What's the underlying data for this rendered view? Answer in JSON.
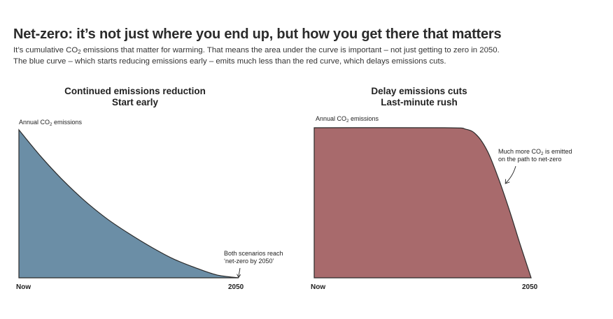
{
  "header": {
    "title": "Net-zero: it’s not just where you end up, but how you get there that matters",
    "subtitle_l1_a": "It’s cumulative CO",
    "subtitle_l1_sub": "2",
    "subtitle_l1_b": " emissions that matter for warming. That means the area under the curve is important – not just getting to zero in 2050.",
    "subtitle_l2": "The blue curve – which starts reducing emissions early – emits much less than the red curve, which delays emissions cuts."
  },
  "chart_data": [
    {
      "type": "area",
      "title": "Continued emissions reduction",
      "subtitle": "Start early",
      "ylabel_a": "Annual CO",
      "ylabel_sub": "2",
      "ylabel_b": " emissions",
      "x_ticks": [
        "Now",
        "2050"
      ],
      "x": [
        0,
        0.1,
        0.2,
        0.3,
        0.4,
        0.5,
        0.6,
        0.7,
        0.8,
        0.9,
        1.0
      ],
      "y": [
        1.0,
        0.82,
        0.66,
        0.52,
        0.4,
        0.3,
        0.21,
        0.13,
        0.07,
        0.02,
        0
      ],
      "ylim": [
        0,
        1
      ],
      "color": "#6b8ea6",
      "annotation_l1": "Both scenarios reach",
      "annotation_l2": "‘net-zero by 2050’"
    },
    {
      "type": "area",
      "title": "Delay emissions cuts",
      "subtitle": "Last-minute rush",
      "ylabel_a": "Annual CO",
      "ylabel_sub": "2",
      "ylabel_b": " emissions",
      "x_ticks": [
        "Now",
        "2050"
      ],
      "x": [
        0,
        0.6,
        0.7,
        0.75,
        0.8,
        0.85,
        0.9,
        0.95,
        1.0
      ],
      "y": [
        1.0,
        1.0,
        0.99,
        0.95,
        0.84,
        0.66,
        0.45,
        0.22,
        0
      ],
      "ylim": [
        0,
        1
      ],
      "color": "#a86a6c",
      "annotation_l1_a": "Much more CO",
      "annotation_l1_sub": "2",
      "annotation_l1_b": " is emitted",
      "annotation_l2": "on the path to net-zero"
    }
  ]
}
